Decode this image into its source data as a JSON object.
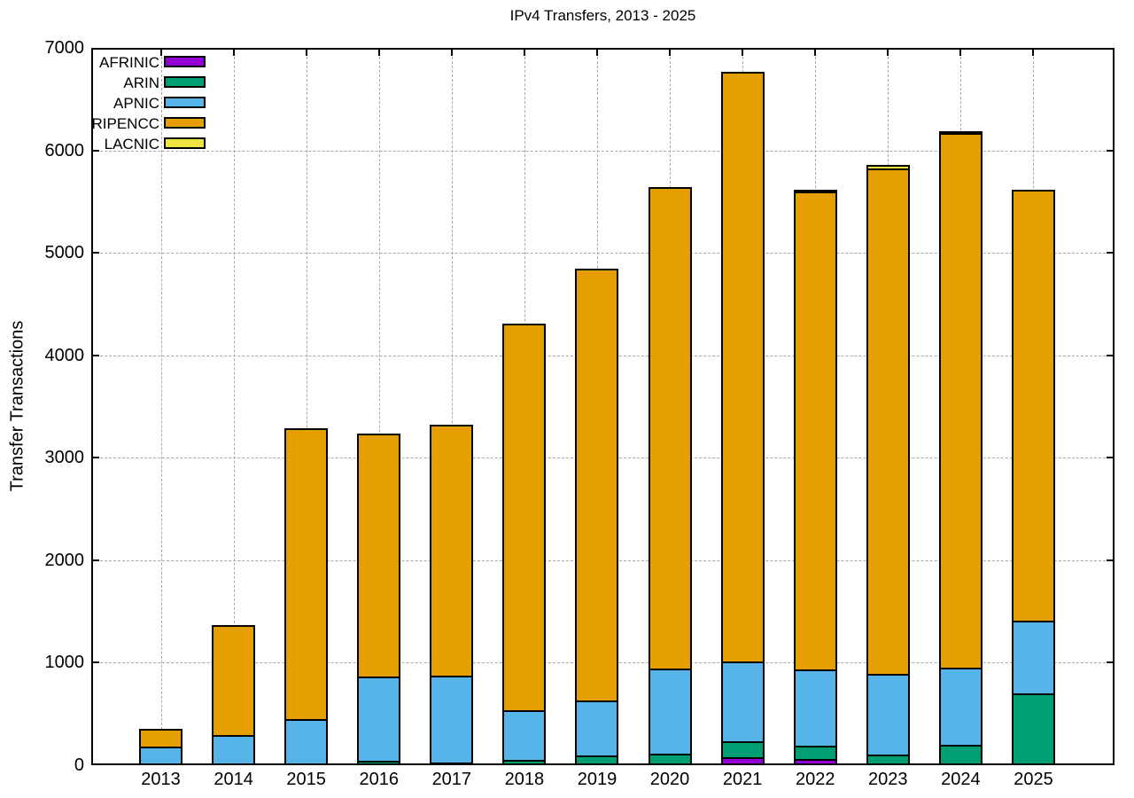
{
  "chart_data": {
    "type": "bar",
    "stacked": true,
    "title": "IPv4 Transfers, 2013 - 2025",
    "xlabel": "",
    "ylabel": "Transfer Transactions",
    "categories": [
      "2013",
      "2014",
      "2015",
      "2016",
      "2017",
      "2018",
      "2019",
      "2020",
      "2021",
      "2022",
      "2023",
      "2024",
      "2025"
    ],
    "series": [
      {
        "name": "AFRINIC",
        "color": "#9400D3",
        "values": [
          0,
          0,
          0,
          0,
          0,
          15,
          20,
          20,
          75,
          60,
          10,
          15,
          0
        ]
      },
      {
        "name": "ARIN",
        "color": "#009E73",
        "values": [
          0,
          0,
          0,
          40,
          30,
          35,
          75,
          90,
          160,
          130,
          95,
          185,
          700
        ]
      },
      {
        "name": "APNIC",
        "color": "#56B4E9",
        "values": [
          180,
          295,
          450,
          825,
          840,
          490,
          535,
          830,
          775,
          745,
          790,
          750,
          710
        ]
      },
      {
        "name": "RIPENCC",
        "color": "#E69F00",
        "values": [
          175,
          1075,
          2835,
          2370,
          2450,
          3765,
          4220,
          4700,
          5755,
          4660,
          4930,
          5220,
          4210
        ]
      },
      {
        "name": "LACNIC",
        "color": "#F0E442",
        "values": [
          0,
          0,
          0,
          0,
          0,
          0,
          0,
          0,
          0,
          15,
          35,
          15,
          0
        ]
      }
    ],
    "totals": [
      355,
      1370,
      3285,
      3235,
      3320,
      4305,
      4850,
      5640,
      6765,
      5610,
      5860,
      6185,
      5620
    ],
    "ylim": [
      0,
      7000
    ],
    "yticks": [
      0,
      1000,
      2000,
      3000,
      4000,
      5000,
      6000,
      7000
    ],
    "grid": true,
    "legend_position": "top-left",
    "legend_order": [
      "AFRINIC",
      "ARIN",
      "APNIC",
      "RIPENCC",
      "LACNIC"
    ],
    "stack_order_bottom_to_top": [
      "AFRINIC",
      "ARIN",
      "APNIC",
      "RIPENCC",
      "LACNIC"
    ],
    "colors": {
      "grid": "#A8A8A8",
      "border": "#000000",
      "background": "#FFFFFF"
    }
  }
}
